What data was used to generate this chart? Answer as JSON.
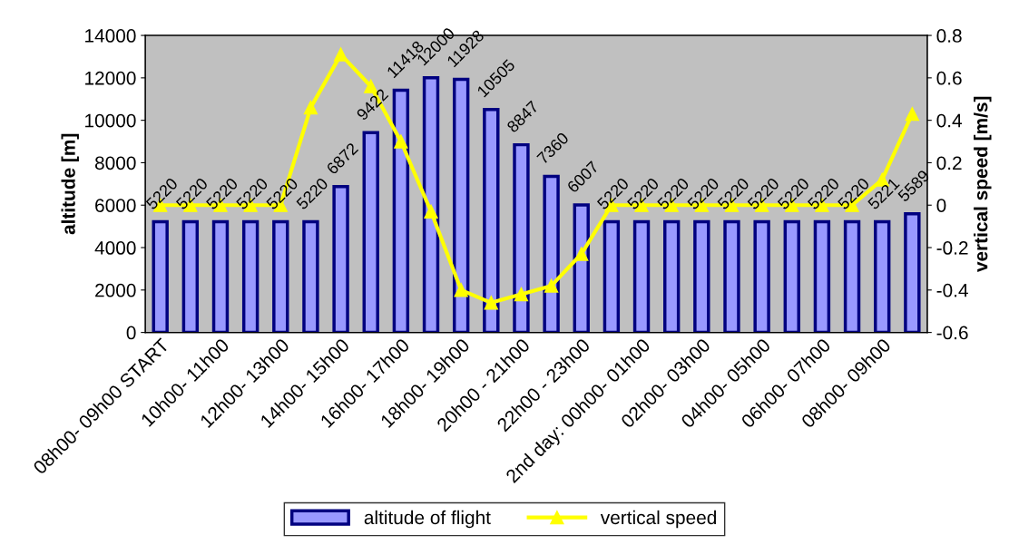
{
  "chart_data": {
    "type": "bar",
    "ylabel": "altitude [m]",
    "y2label": "vertical speed [m/s]",
    "categories": [
      "08h00- 09h00 START",
      null,
      "10h00- 11h00",
      null,
      "12h00- 13h00",
      null,
      "14h00- 15h00",
      null,
      "16h00- 17h00",
      null,
      "18h00- 19h00",
      null,
      "20h00 - 21h00",
      null,
      "22h00 - 23h00",
      null,
      "2nd day: 00h00- 01h00",
      null,
      "02h00- 03h00",
      null,
      "04h00- 05h00",
      null,
      "06h00- 07h00",
      null,
      "08h00- 09h00",
      null
    ],
    "series": [
      {
        "name": "altitude of flight",
        "color": "#9999ff",
        "values": [
          5220,
          5220,
          5220,
          5220,
          5220,
          5220,
          6872,
          9422,
          11418,
          12000,
          11928,
          10505,
          8847,
          7360,
          6007,
          5220,
          5220,
          5220,
          5220,
          5220,
          5220,
          5220,
          5220,
          5220,
          5221,
          5589
        ],
        "data_labels": true
      },
      {
        "name": "vertical speed",
        "type": "line",
        "axis": "y2",
        "color": "#ffff00",
        "marker": "triangle",
        "values": [
          0,
          0,
          0,
          0,
          0,
          0.46,
          0.71,
          0.56,
          0.3,
          -0.03,
          -0.4,
          -0.46,
          -0.42,
          -0.38,
          -0.23,
          0,
          0,
          0,
          0,
          0,
          0,
          0,
          0,
          0,
          0.12,
          0.43
        ]
      }
    ],
    "ylim": [
      0,
      14000
    ],
    "yticks": [
      0,
      2000,
      4000,
      6000,
      8000,
      10000,
      12000,
      14000
    ],
    "y2lim": [
      -0.6,
      0.8
    ],
    "y2ticks": [
      -0.6,
      -0.4,
      -0.2,
      0,
      0.2,
      0.4,
      0.6,
      0.8
    ],
    "grid": false,
    "legend": "bottom"
  }
}
